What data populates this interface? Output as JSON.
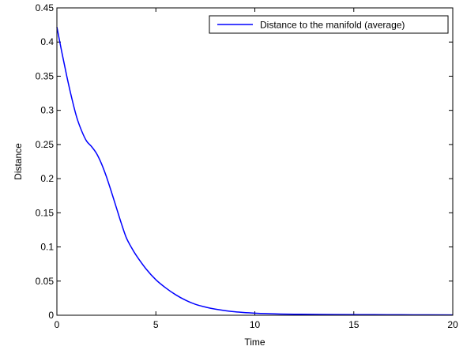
{
  "chart_data": {
    "type": "line",
    "title": "",
    "xlabel": "Time",
    "ylabel": "Distance",
    "xlim": [
      0,
      20
    ],
    "ylim": [
      0,
      0.45
    ],
    "grid": false,
    "legend_position": "top-right",
    "x_ticks": [
      0,
      5,
      10,
      15,
      20
    ],
    "x_tick_labels": [
      "0",
      "5",
      "10",
      "15",
      "20"
    ],
    "y_ticks": [
      0,
      0.05,
      0.1,
      0.15,
      0.2,
      0.25,
      0.3,
      0.35,
      0.4,
      0.45
    ],
    "y_tick_labels": [
      "0",
      "0.05",
      "0.1",
      "0.15",
      "0.2",
      "0.25",
      "0.3",
      "0.35",
      "0.4",
      "0.45"
    ],
    "series": [
      {
        "name": "Distance to the manifold (average)",
        "color": "#0000ff",
        "x": [
          0,
          0.25,
          0.5,
          0.75,
          1.0,
          1.25,
          1.5,
          1.75,
          2.0,
          2.25,
          2.5,
          2.75,
          3.0,
          3.25,
          3.5,
          3.75,
          4.0,
          4.5,
          5.0,
          5.5,
          6.0,
          6.5,
          7.0,
          7.5,
          8.0,
          9.0,
          10.0,
          11.0,
          12.0,
          14.0,
          16.0,
          18.0,
          20.0
        ],
        "y": [
          0.422,
          0.385,
          0.35,
          0.318,
          0.29,
          0.27,
          0.255,
          0.247,
          0.237,
          0.222,
          0.203,
          0.181,
          0.158,
          0.135,
          0.114,
          0.1,
          0.088,
          0.068,
          0.052,
          0.04,
          0.03,
          0.022,
          0.016,
          0.012,
          0.009,
          0.005,
          0.003,
          0.002,
          0.0015,
          0.001,
          0.0008,
          0.0006,
          0.0005
        ]
      }
    ]
  }
}
